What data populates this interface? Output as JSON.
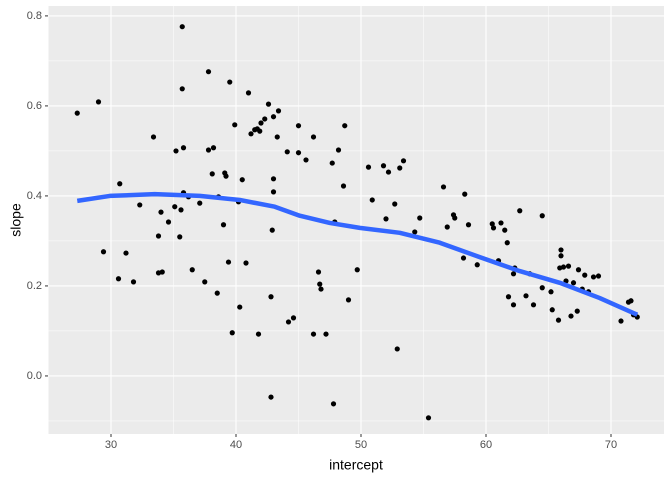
{
  "chart_data": {
    "type": "scatter",
    "x_label": "intercept",
    "y_label": "slope",
    "point_color": "#000000",
    "panel_color": "#EBEBEB",
    "grid": true,
    "xlim": [
      24.96,
      74.24
    ],
    "ylim": [
      -0.129,
      0.822
    ],
    "xticks": [
      30,
      40,
      50,
      60,
      70
    ],
    "yticks": [
      {
        "value": 0,
        "label": "0.0"
      },
      0.2,
      0.4,
      0.6,
      0.8
    ],
    "x": [
      27.3,
      29.0,
      29.4,
      30.7,
      30.6,
      31.2,
      31.8,
      32.3,
      33.4,
      33.8,
      34.1,
      33.8,
      34.0,
      34.6,
      35.1,
      35.2,
      35.5,
      35.6,
      35.7,
      35.7,
      35.8,
      35.8,
      36.2,
      36.5,
      37.1,
      37.5,
      37.8,
      37.8,
      38.2,
      38.1,
      38.5,
      38.6,
      39.0,
      39.1,
      39.2,
      39.4,
      39.5,
      39.7,
      39.9,
      40.2,
      40.3,
      40.5,
      40.8,
      41.0,
      41.2,
      41.5,
      41.7,
      41.8,
      41.9,
      42.0,
      42.3,
      42.6,
      42.8,
      42.8,
      42.9,
      43.0,
      43.0,
      43.0,
      43.3,
      43.4,
      44.1,
      44.2,
      44.6,
      45.0,
      45.0,
      45.6,
      46.2,
      46.2,
      46.6,
      46.7,
      46.8,
      47.2,
      47.7,
      47.8,
      47.9,
      48.2,
      48.6,
      48.7,
      49.0,
      49.7,
      50.6,
      50.9,
      51.8,
      52.0,
      52.2,
      52.7,
      52.9,
      53.1,
      53.4,
      54.3,
      54.7,
      55.4,
      56.6,
      56.9,
      57.4,
      57.5,
      58.2,
      58.3,
      58.6,
      59.3,
      60.5,
      60.6,
      61.0,
      61.2,
      61.5,
      61.7,
      61.8,
      62.2,
      62.2,
      62.3,
      62.7,
      63.2,
      63.5,
      63.8,
      64.5,
      64.5,
      65.2,
      65.3,
      65.8,
      65.9,
      66.0,
      66.0,
      66.2,
      66.4,
      66.6,
      66.8,
      67.0,
      67.3,
      67.4,
      67.7,
      67.9,
      68.2,
      68.6,
      69.0,
      70.8,
      71.4,
      71.6,
      71.8,
      72.1
    ],
    "y": [
      0.584,
      0.609,
      0.276,
      0.427,
      0.216,
      0.273,
      0.209,
      0.38,
      0.531,
      0.229,
      0.231,
      0.311,
      0.364,
      0.342,
      0.376,
      0.5,
      0.309,
      0.369,
      0.638,
      0.776,
      0.507,
      0.407,
      0.398,
      0.236,
      0.384,
      0.209,
      0.676,
      0.502,
      0.507,
      0.449,
      0.184,
      0.398,
      0.336,
      0.451,
      0.444,
      0.253,
      0.653,
      0.096,
      0.558,
      0.387,
      0.153,
      0.436,
      0.251,
      0.629,
      0.538,
      0.547,
      0.549,
      0.093,
      0.544,
      0.562,
      0.571,
      0.604,
      -0.047,
      0.176,
      0.324,
      0.438,
      0.409,
      0.576,
      0.531,
      0.589,
      0.498,
      0.12,
      0.129,
      0.556,
      0.496,
      0.48,
      0.531,
      0.093,
      0.231,
      0.204,
      0.193,
      0.093,
      0.473,
      -0.062,
      0.342,
      0.502,
      0.422,
      0.556,
      0.169,
      0.236,
      0.464,
      0.391,
      0.467,
      0.349,
      0.453,
      0.382,
      0.06,
      0.462,
      0.478,
      0.32,
      0.351,
      -0.093,
      0.42,
      0.331,
      0.358,
      0.351,
      0.262,
      0.404,
      0.336,
      0.247,
      0.338,
      0.329,
      0.256,
      0.34,
      0.324,
      0.296,
      0.176,
      0.227,
      0.158,
      0.24,
      0.367,
      0.178,
      0.227,
      0.158,
      0.356,
      0.196,
      0.187,
      0.147,
      0.124,
      0.24,
      0.28,
      0.267,
      0.242,
      0.211,
      0.244,
      0.133,
      0.207,
      0.144,
      0.236,
      0.193,
      0.224,
      0.187,
      0.22,
      0.222,
      0.122,
      0.164,
      0.167,
      0.136,
      0.131
    ],
    "smooth": {
      "color": "#3366FF",
      "x": [
        27.3,
        29.9,
        33.5,
        37.1,
        40.3,
        43.1,
        45.1,
        47.5,
        49.9,
        53.1,
        56.3,
        59.5,
        62.7,
        65.9,
        69.1,
        72.1
      ],
      "y": [
        0.389,
        0.4,
        0.404,
        0.4,
        0.391,
        0.376,
        0.356,
        0.34,
        0.329,
        0.318,
        0.296,
        0.264,
        0.233,
        0.207,
        0.173,
        0.136
      ]
    }
  }
}
